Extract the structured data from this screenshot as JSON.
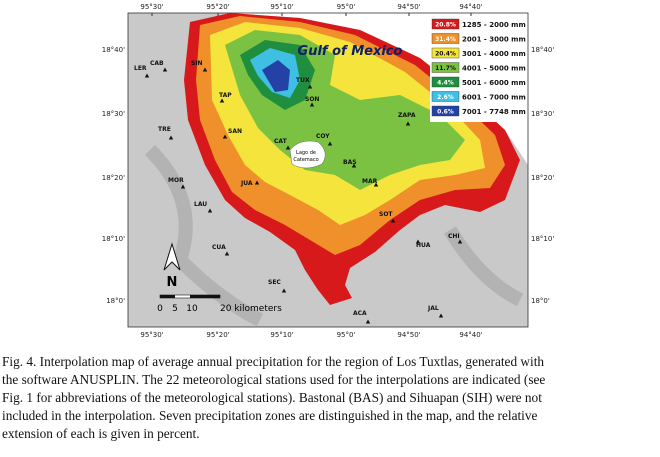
{
  "map": {
    "longitudes": [
      "95°30'",
      "95°20'",
      "95°10'",
      "95°0'",
      "94°50'",
      "94°40'"
    ],
    "latitudes": [
      "18°40'",
      "18°30'",
      "18°20'",
      "18°10'",
      "18°0'"
    ],
    "sea_label": "Gulf of Mexico",
    "lake_label": [
      "Lago de",
      "Catemaco"
    ],
    "north": "N",
    "scale": [
      "0",
      "5",
      "10",
      "20 kilometers"
    ],
    "legend": [
      {
        "percent": "20.8%",
        "range": "1285 - 2000 mm"
      },
      {
        "percent": "31.4%",
        "range": "2001 - 3000 mm"
      },
      {
        "percent": "20.4%",
        "range": "3001 - 4000 mm"
      },
      {
        "percent": "11.7%",
        "range": "4001 - 5000 mm"
      },
      {
        "percent": "4.4%",
        "range": "5001 - 6000 mm"
      },
      {
        "percent": "2.6%",
        "range": "6001 - 7000 mm"
      },
      {
        "percent": "0.6%",
        "range": "7001 - 7748 mm"
      }
    ],
    "stations": [
      "LER",
      "CAB",
      "SIN",
      "TUX",
      "TAP",
      "SON",
      "ZAPA",
      "TRE",
      "SAN",
      "CAT",
      "COY",
      "BAS",
      "MOR",
      "JUA",
      "MAR",
      "LAU",
      "SOT",
      "CHI",
      "CUA",
      "HUA",
      "SEC",
      "JAL",
      "ACA"
    ]
  },
  "caption": [
    "Fig. 4. Interpolation map of average annual precipitation for the region of Los Tuxtlas, generated with",
    "the software ANUSPLIN. The 22 meteorological stations used for the interpolations are indicated (see",
    "Fig. 1 for abbreviations of the meteorological stations). Bastonal (BAS) and Sihuapan (SIH) were not",
    "included in the interpolation. Seven precipitation zones are distinguished in the map, and the relative",
    "extension of each is given in percent."
  ]
}
